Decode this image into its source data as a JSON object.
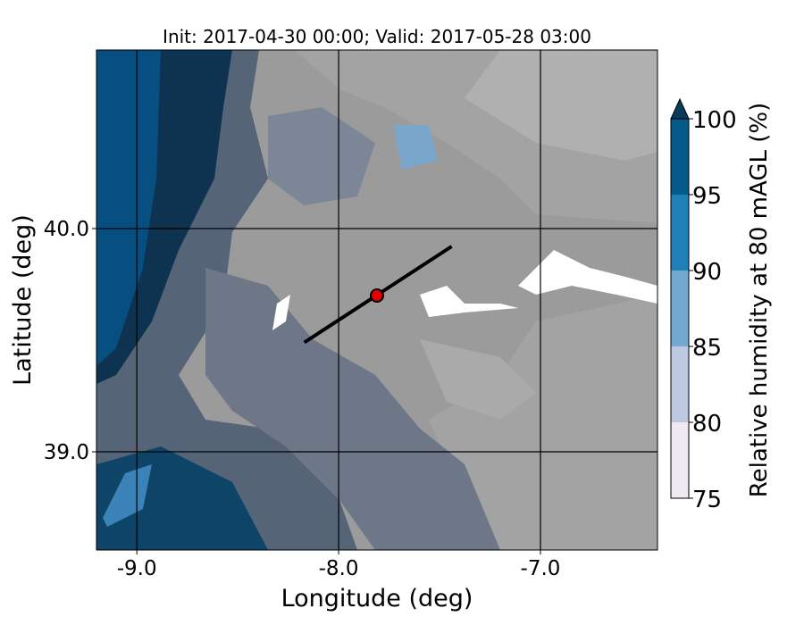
{
  "chart_data": {
    "type": "map",
    "title": "Init: 2017-04-30 00:00; Valid: 2017-05-28 03:00",
    "x_label": "Longitude (deg)",
    "y_label": "Latitude (deg)",
    "xlim": [
      -9.2,
      -6.42
    ],
    "ylim": [
      38.56,
      40.8
    ],
    "xticks": [
      {
        "value": -9,
        "label": "-9.0"
      },
      {
        "value": -8,
        "label": "-8.0"
      },
      {
        "value": -7,
        "label": "-7.0"
      }
    ],
    "yticks": [
      {
        "value": 39,
        "label": "39.0"
      },
      {
        "value": 40,
        "label": "40.0"
      }
    ],
    "grid": true,
    "transect": {
      "lon": [
        -8.17,
        -7.44
      ],
      "lat": [
        39.49,
        39.92
      ],
      "color": "#000000"
    },
    "point": {
      "lon": -7.81,
      "lat": 39.7,
      "color": "#e00000"
    },
    "colorbar": {
      "label": "Relative humidity at 80 mAGL (%)",
      "levels": [
        75,
        80,
        85,
        90,
        95,
        100
      ],
      "colors": [
        "#efe9f3",
        "#bdc8e1",
        "#73a8cf",
        "#1e80b7",
        "#055a8c"
      ],
      "extend_color": "#0b3b5c"
    }
  }
}
